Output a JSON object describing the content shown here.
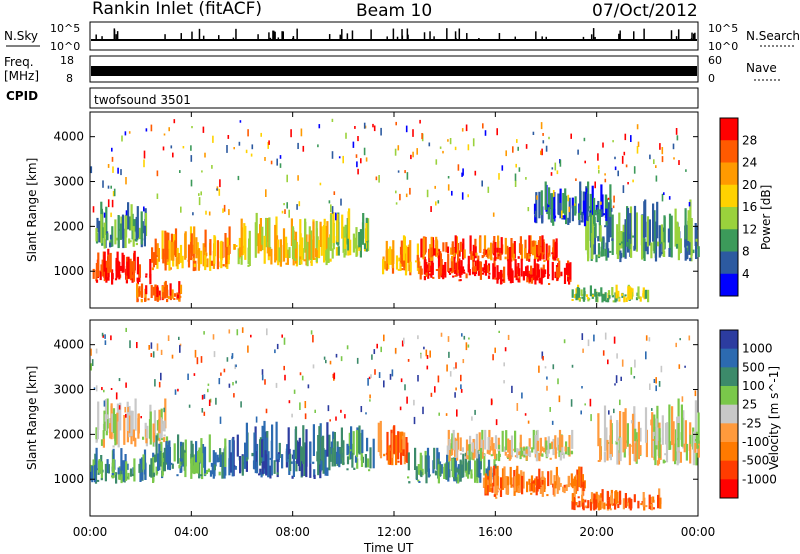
{
  "header": {
    "station": "Rankin Inlet (fitACF)",
    "beam": "Beam 10",
    "date": "07/Oct/2012"
  },
  "panels": {
    "nsky_label": "N.Sky",
    "nsearch_label": "N.Search",
    "freq_label_line1": "Freq.",
    "freq_label_line2": "[MHz]",
    "nave_label": "Nave",
    "cpid_label": "CPID",
    "cpid_value": "twofsound 3501",
    "nsky_ticks": [
      "10^5",
      "10^0"
    ],
    "nsearch_ticks": [
      "10^5",
      "10^0"
    ],
    "freq_ticks": [
      "18",
      "8"
    ],
    "nave_ticks": [
      "60",
      "0"
    ]
  },
  "chart_data": [
    {
      "type": "heatmap",
      "name": "power",
      "xlabel": "",
      "ylabel": "Slant Range [km]",
      "y_ticks": [
        1000,
        2000,
        3000,
        4000
      ],
      "x_range_hours": [
        0,
        24
      ],
      "y_range_km": [
        180,
        4550
      ],
      "colorbar_label": "Power [dB]",
      "colorbar_ticks": [
        "28",
        "24",
        "20",
        "16",
        "12",
        "8",
        "4"
      ],
      "colorbar_colors": [
        "#ff0000",
        "#ff5a00",
        "#ff9a00",
        "#ffd200",
        "#9ad23c",
        "#3c9a5a",
        "#2c5aa0",
        "#0000ff"
      ],
      "echo_regions": [
        {
          "t0": 0.0,
          "t1": 2.4,
          "r0": 700,
          "r1": 1500,
          "level": 0
        },
        {
          "t0": 0.2,
          "t1": 2.2,
          "r0": 1500,
          "r1": 2600,
          "level": 5
        },
        {
          "t0": 2.4,
          "t1": 5.5,
          "r0": 1000,
          "r1": 2000,
          "level": 2
        },
        {
          "t0": 1.8,
          "t1": 3.6,
          "r0": 300,
          "r1": 800,
          "level": 1
        },
        {
          "t0": 5.5,
          "t1": 9.6,
          "r0": 1100,
          "r1": 2300,
          "level": 3
        },
        {
          "t0": 9.5,
          "t1": 11.0,
          "r0": 1300,
          "r1": 2400,
          "level": 4
        },
        {
          "t0": 11.5,
          "t1": 13.0,
          "r0": 900,
          "r1": 1800,
          "level": 2
        },
        {
          "t0": 13.0,
          "t1": 16.0,
          "r0": 800,
          "r1": 1400,
          "level": 0
        },
        {
          "t0": 13.0,
          "t1": 18.5,
          "r0": 1200,
          "r1": 1800,
          "level": 1
        },
        {
          "t0": 16.0,
          "t1": 19.0,
          "r0": 700,
          "r1": 1300,
          "level": 0
        },
        {
          "t0": 19.0,
          "t1": 22.0,
          "r0": 300,
          "r1": 700,
          "level": 4
        },
        {
          "t0": 19.5,
          "t1": 24.0,
          "r0": 1200,
          "r1": 2600,
          "level": 5
        },
        {
          "t0": 17.5,
          "t1": 20.5,
          "r0": 2000,
          "r1": 3000,
          "level": 6
        }
      ]
    },
    {
      "type": "heatmap",
      "name": "velocity",
      "xlabel": "Time UT",
      "ylabel": "Slant Range [km]",
      "x_ticks": [
        "00:00",
        "04:00",
        "08:00",
        "12:00",
        "16:00",
        "20:00",
        "00:00"
      ],
      "y_ticks": [
        1000,
        2000,
        3000,
        4000
      ],
      "x_range_hours": [
        0,
        24
      ],
      "y_range_km": [
        180,
        4550
      ],
      "colorbar_label": "Velocity [m s^-1]",
      "colorbar_ticks": [
        "1000",
        "500",
        "100",
        "25",
        "-25",
        "-100",
        "-500",
        "-1000"
      ],
      "colorbar_colors": [
        "#2c3ca0",
        "#2c6ab0",
        "#3c8a6a",
        "#7ac84a",
        "#c8c8c8",
        "#ff9a3c",
        "#ff7a00",
        "#ff3c00",
        "#ff0000"
      ],
      "echo_regions": [
        {
          "t0": 0.0,
          "t1": 2.5,
          "r0": 900,
          "r1": 1700,
          "level": 2
        },
        {
          "t0": 0.2,
          "t1": 3.0,
          "r0": 1700,
          "r1": 2800,
          "level": 4
        },
        {
          "t0": 2.5,
          "t1": 5.5,
          "r0": 1000,
          "r1": 2000,
          "level": 2
        },
        {
          "t0": 5.5,
          "t1": 9.5,
          "r0": 1000,
          "r1": 2300,
          "level": 1
        },
        {
          "t0": 9.5,
          "t1": 11.2,
          "r0": 1200,
          "r1": 2300,
          "level": 2
        },
        {
          "t0": 11.3,
          "t1": 12.5,
          "r0": 1300,
          "r1": 2300,
          "level": 6
        },
        {
          "t0": 12.5,
          "t1": 16.0,
          "r0": 900,
          "r1": 1700,
          "level": 2
        },
        {
          "t0": 14.0,
          "t1": 19.0,
          "r0": 1400,
          "r1": 2100,
          "level": 4
        },
        {
          "t0": 15.5,
          "t1": 19.5,
          "r0": 600,
          "r1": 1300,
          "level": 6
        },
        {
          "t0": 19.0,
          "t1": 22.5,
          "r0": 300,
          "r1": 800,
          "level": 6
        },
        {
          "t0": 20.0,
          "t1": 24.0,
          "r0": 1300,
          "r1": 2800,
          "level": 4
        }
      ]
    }
  ]
}
